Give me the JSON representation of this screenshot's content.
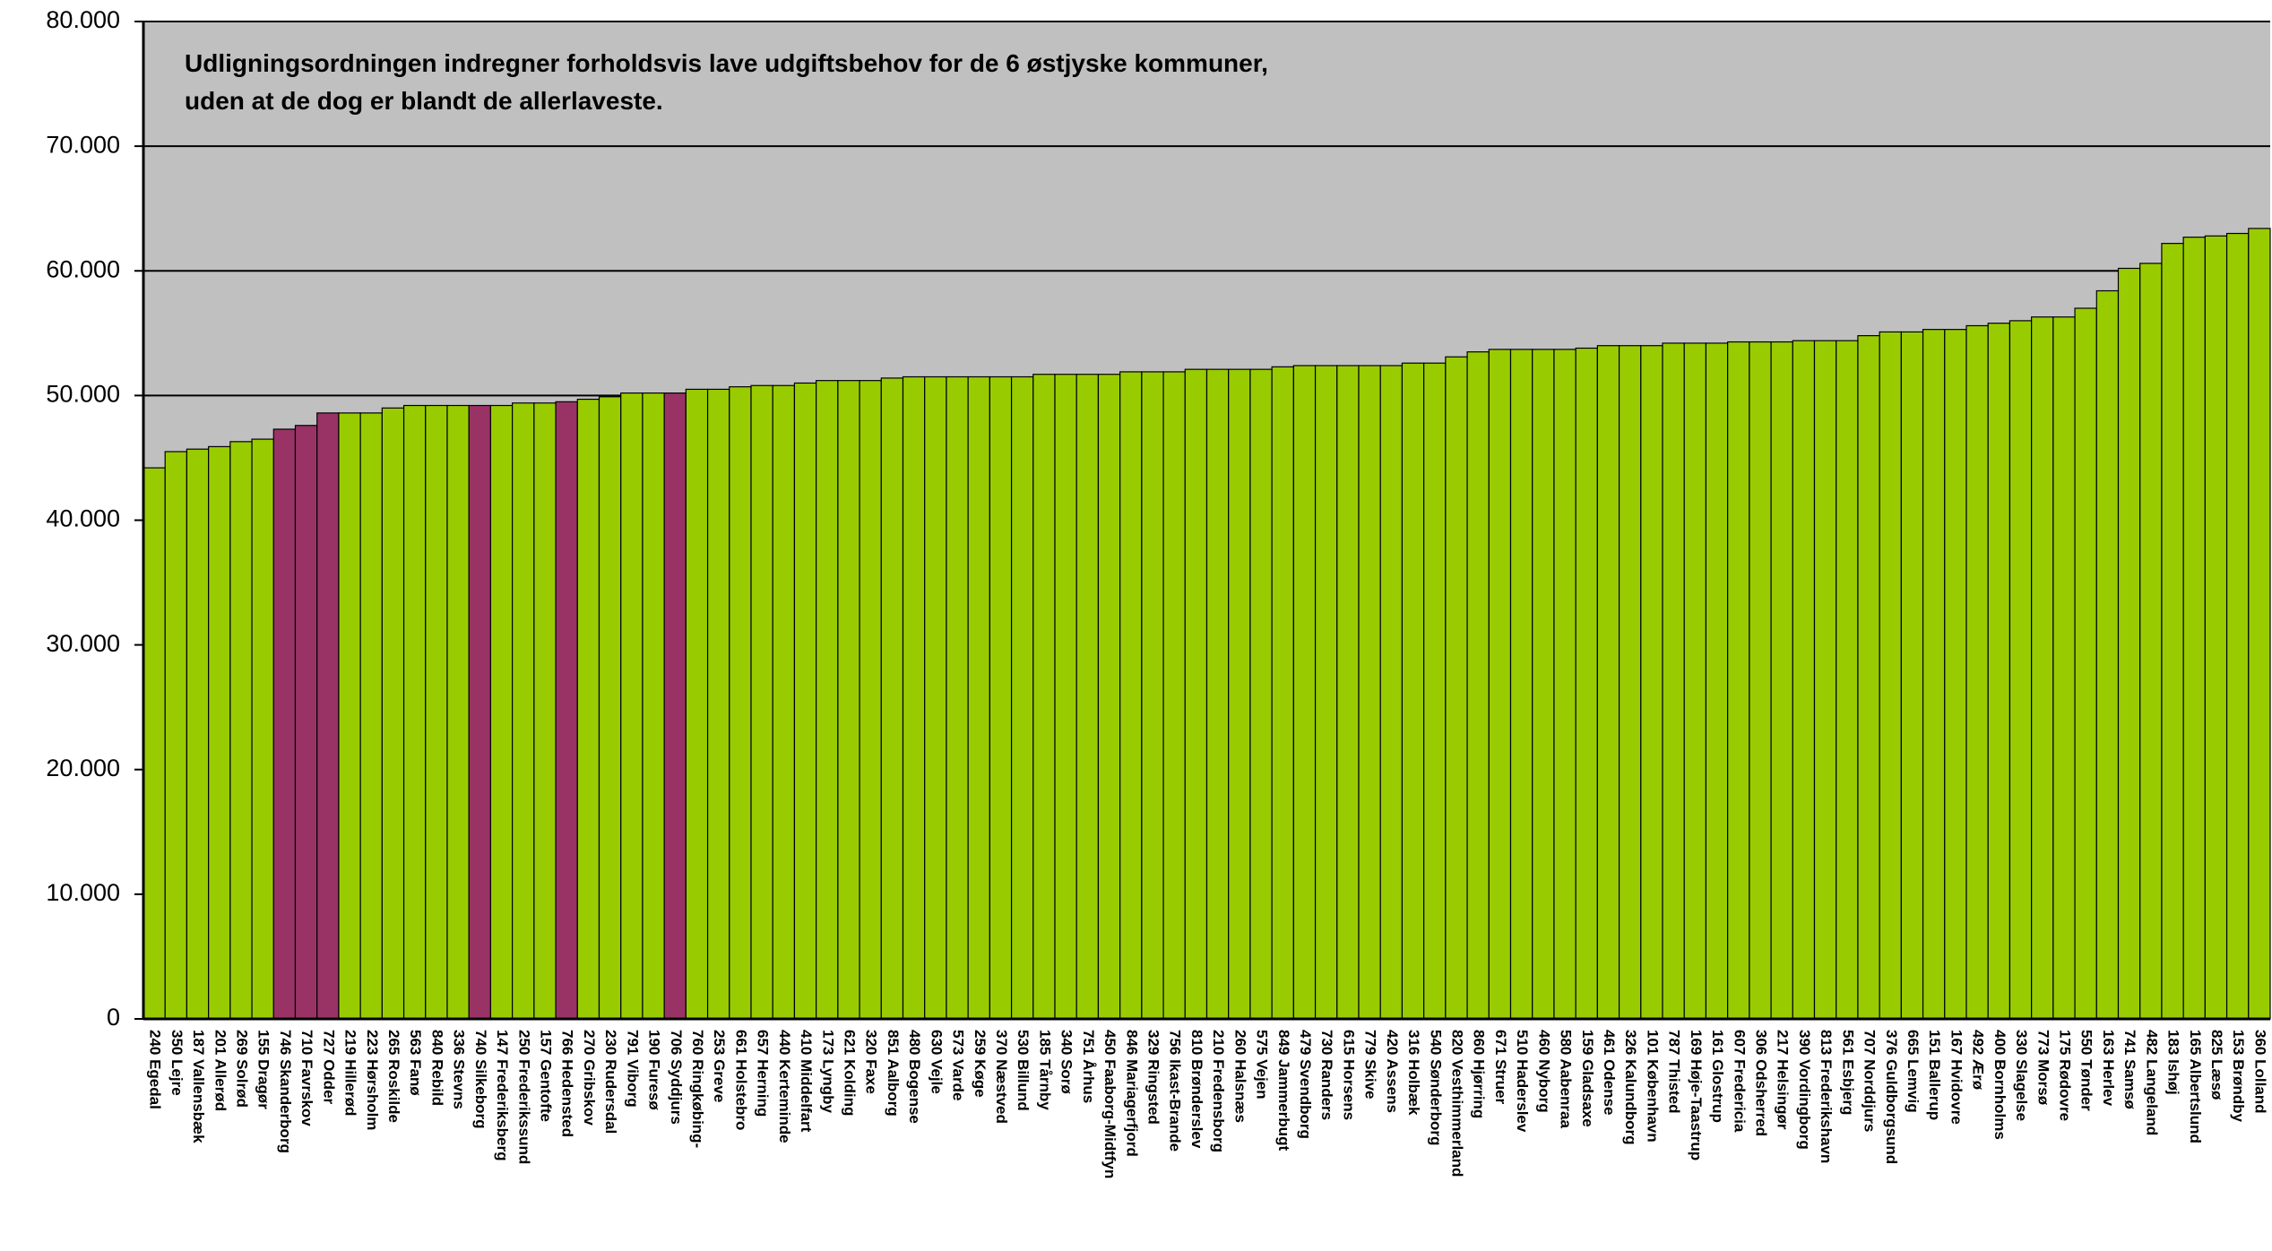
{
  "chart_data": {
    "type": "bar",
    "annotation": [
      "Udligningsordningen indregner forholdsvis lave udgiftsbehov for de 6 østjyske kommuner,",
      "uden at de dog er blandt de allerlaveste."
    ],
    "categories": [
      "240 Egedal",
      "350 Lejre",
      "187 Vallensbæk",
      "201 Allerød",
      "269 Solrød",
      "155 Dragør",
      "746 Skanderborg",
      "710 Favrskov",
      "727 Odder",
      "219 Hillerød",
      "223 Hørsholm",
      "265 Roskilde",
      "563 Fanø",
      "840 Rebild",
      "336 Stevns",
      "740 Silkeborg",
      "147 Frederiksberg",
      "250 Frederikssund",
      "157 Gentofte",
      "766 Hedensted",
      "270 Gribskov",
      "230 Rudersdal",
      "791 Viborg",
      "190 Furesø",
      "706 Syddjurs",
      "760 Ringkøbing-",
      "253 Greve",
      "661 Holstebro",
      "657 Herning",
      "440 Kerteminde",
      "410 Middelfart",
      "173 Lyngby",
      "621 Kolding",
      "320 Faxe",
      "851 Aalborg",
      "480 Bogense",
      "630 Vejle",
      "573 Varde",
      "259 Køge",
      "370 Næstved",
      "530 Billund",
      "185 Tårnby",
      "340 Sorø",
      "751 Århus",
      "450 Faaborg-Midtfyn",
      "846 Mariagerfjord",
      "329 Ringsted",
      "756 Ikast-Brande",
      "810 Brønderslev",
      "210 Fredensborg",
      "260 Halsnæs",
      "575 Vejen",
      "849 Jammerbugt",
      "479 Svendborg",
      "730 Randers",
      "615 Horsens",
      "779 Skive",
      "420 Assens",
      "316 Holbæk",
      "540 Sønderborg",
      "820 Vesthimmerland",
      "860 Hjørring",
      "671 Struer",
      "510 Haderslev",
      "460 Nyborg",
      "580 Aabenraa",
      "159 Gladsaxe",
      "461 Odense",
      "326 Kalundborg",
      "101 København",
      "787 Thisted",
      "169 Høje-Taastrup",
      "161 Glostrup",
      "607 Fredericia",
      "306 Odsherred",
      "217 Helsingør",
      "390 Vordingborg",
      "813 Frederikshavn",
      "561 Esbjerg",
      "707 Norddjurs",
      "376 Guldborgsund",
      "665 Lemvig",
      "151 Ballerup",
      "167 Hvidovre",
      "492 Ærø",
      "400 Bornholms",
      "330 Slagelse",
      "773 Morsø",
      "175 Rødovre",
      "550 Tønder",
      "163 Herlev",
      "741 Samsø",
      "482 Langeland",
      "183 Ishøj",
      "165 Albertslund",
      "825 Læsø",
      "153 Brøndby",
      "360 Lolland"
    ],
    "values": [
      44200,
      45500,
      45700,
      45900,
      46300,
      46500,
      47300,
      47600,
      48600,
      48600,
      48600,
      49000,
      49200,
      49200,
      49200,
      49200,
      49200,
      49400,
      49400,
      49500,
      49700,
      49900,
      50200,
      50200,
      50200,
      50500,
      50500,
      50700,
      50800,
      50800,
      51000,
      51200,
      51200,
      51200,
      51400,
      51500,
      51500,
      51500,
      51500,
      51500,
      51500,
      51700,
      51700,
      51700,
      51700,
      51900,
      51900,
      51900,
      52100,
      52100,
      52100,
      52100,
      52300,
      52400,
      52400,
      52400,
      52400,
      52400,
      52600,
      52600,
      53100,
      53500,
      53700,
      53700,
      53700,
      53700,
      53800,
      54000,
      54000,
      54000,
      54200,
      54200,
      54200,
      54300,
      54300,
      54300,
      54400,
      54400,
      54400,
      54800,
      55100,
      55100,
      55300,
      55300,
      55600,
      55800,
      56000,
      56300,
      56300,
      57000,
      58400,
      60200,
      60600,
      62200,
      62700,
      62800,
      63000,
      63400
    ],
    "colors": [
      "#99cc00",
      "#99cc00",
      "#99cc00",
      "#99cc00",
      "#99cc00",
      "#99cc00",
      "#993366",
      "#993366",
      "#993366",
      "#99cc00",
      "#99cc00",
      "#99cc00",
      "#99cc00",
      "#99cc00",
      "#99cc00",
      "#993366",
      "#99cc00",
      "#99cc00",
      "#99cc00",
      "#993366",
      "#99cc00",
      "#99cc00",
      "#99cc00",
      "#99cc00",
      "#993366",
      "#99cc00",
      "#99cc00",
      "#99cc00",
      "#99cc00",
      "#99cc00",
      "#99cc00",
      "#99cc00",
      "#99cc00",
      "#99cc00",
      "#99cc00",
      "#99cc00",
      "#99cc00",
      "#99cc00",
      "#99cc00",
      "#99cc00",
      "#99cc00",
      "#99cc00",
      "#99cc00",
      "#99cc00",
      "#99cc00",
      "#99cc00",
      "#99cc00",
      "#99cc00",
      "#99cc00",
      "#99cc00",
      "#99cc00",
      "#99cc00",
      "#99cc00",
      "#99cc00",
      "#99cc00",
      "#99cc00",
      "#99cc00",
      "#99cc00",
      "#99cc00",
      "#99cc00",
      "#99cc00",
      "#99cc00",
      "#99cc00",
      "#99cc00",
      "#99cc00",
      "#99cc00",
      "#99cc00",
      "#99cc00",
      "#99cc00",
      "#99cc00",
      "#99cc00",
      "#99cc00",
      "#99cc00",
      "#99cc00",
      "#99cc00",
      "#99cc00",
      "#99cc00",
      "#99cc00",
      "#99cc00",
      "#99cc00",
      "#99cc00",
      "#99cc00",
      "#99cc00",
      "#99cc00",
      "#99cc00",
      "#99cc00",
      "#99cc00",
      "#99cc00",
      "#99cc00",
      "#99cc00",
      "#99cc00",
      "#99cc00",
      "#99cc00",
      "#99cc00",
      "#99cc00",
      "#99cc00",
      "#99cc00",
      "#99cc00"
    ],
    "ylim": [
      0,
      80000
    ],
    "yticks": [
      0,
      {
        "value": 10000,
        "label": "10.000"
      },
      {
        "value": 20000,
        "label": "20.000"
      },
      {
        "value": 30000,
        "label": "30.000"
      },
      {
        "value": 40000,
        "label": "40.000"
      },
      {
        "value": 50000,
        "label": "50.000"
      },
      {
        "value": 60000,
        "label": "60.000"
      },
      {
        "value": 70000,
        "label": "70.000"
      },
      {
        "value": 80000,
        "label": "80.000"
      }
    ],
    "grid": true,
    "background": "#c0c0c0"
  }
}
